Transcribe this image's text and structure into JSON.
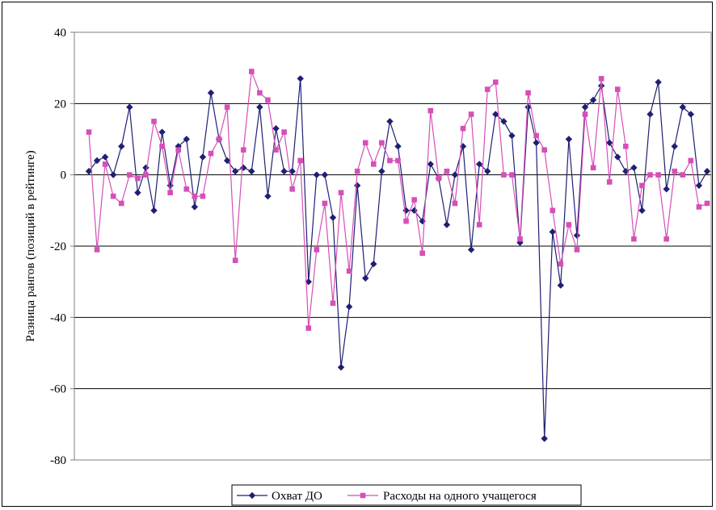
{
  "chart_data": {
    "type": "line",
    "title": "",
    "xlabel": "",
    "ylabel": "Разница рангов (позиций в рейтинге)",
    "ylim": [
      -80,
      40
    ],
    "yticks": [
      40,
      20,
      0,
      -20,
      -40,
      -60,
      -80
    ],
    "grid": true,
    "legend_position": "bottom",
    "series": [
      {
        "name": "Охват ДО",
        "color": "#1f1f73",
        "marker": "diamond",
        "values": [
          1,
          4,
          5,
          0,
          8,
          19,
          -5,
          2,
          -10,
          12,
          -3,
          8,
          10,
          -9,
          5,
          23,
          10,
          4,
          1,
          2,
          1,
          19,
          -6,
          13,
          1,
          1,
          27,
          -30,
          0,
          0,
          -12,
          -54,
          -37,
          -3,
          -29,
          -25,
          1,
          15,
          8,
          -10,
          -10,
          -13,
          3,
          -1,
          -14,
          0,
          8,
          -21,
          3,
          1,
          17,
          15,
          11,
          -19,
          19,
          9,
          -74,
          -16,
          -31,
          10,
          -17,
          19,
          21,
          25,
          9,
          5,
          1,
          2,
          -10,
          17,
          26,
          -4,
          8,
          19,
          17,
          -3,
          1
        ]
      },
      {
        "name": "Расходы на одного учащегося",
        "color": "#d64fb8",
        "marker": "square",
        "values": [
          12,
          -21,
          3,
          -6,
          -8,
          0,
          -1,
          0,
          15,
          8,
          -5,
          7,
          -4,
          -6,
          -6,
          6,
          10,
          19,
          -24,
          7,
          29,
          23,
          21,
          7,
          12,
          -4,
          4,
          -43,
          -21,
          -8,
          -36,
          -5,
          -27,
          1,
          9,
          3,
          9,
          4,
          4,
          -13,
          -7,
          -22,
          18,
          -1,
          1,
          -8,
          13,
          17,
          -14,
          24,
          26,
          0,
          0,
          -18,
          23,
          11,
          7,
          -10,
          -25,
          -14,
          -21,
          17,
          2,
          27,
          -2,
          24,
          8,
          -18,
          -3,
          0,
          0,
          -18,
          1,
          0,
          4,
          -9,
          -8
        ]
      }
    ]
  }
}
